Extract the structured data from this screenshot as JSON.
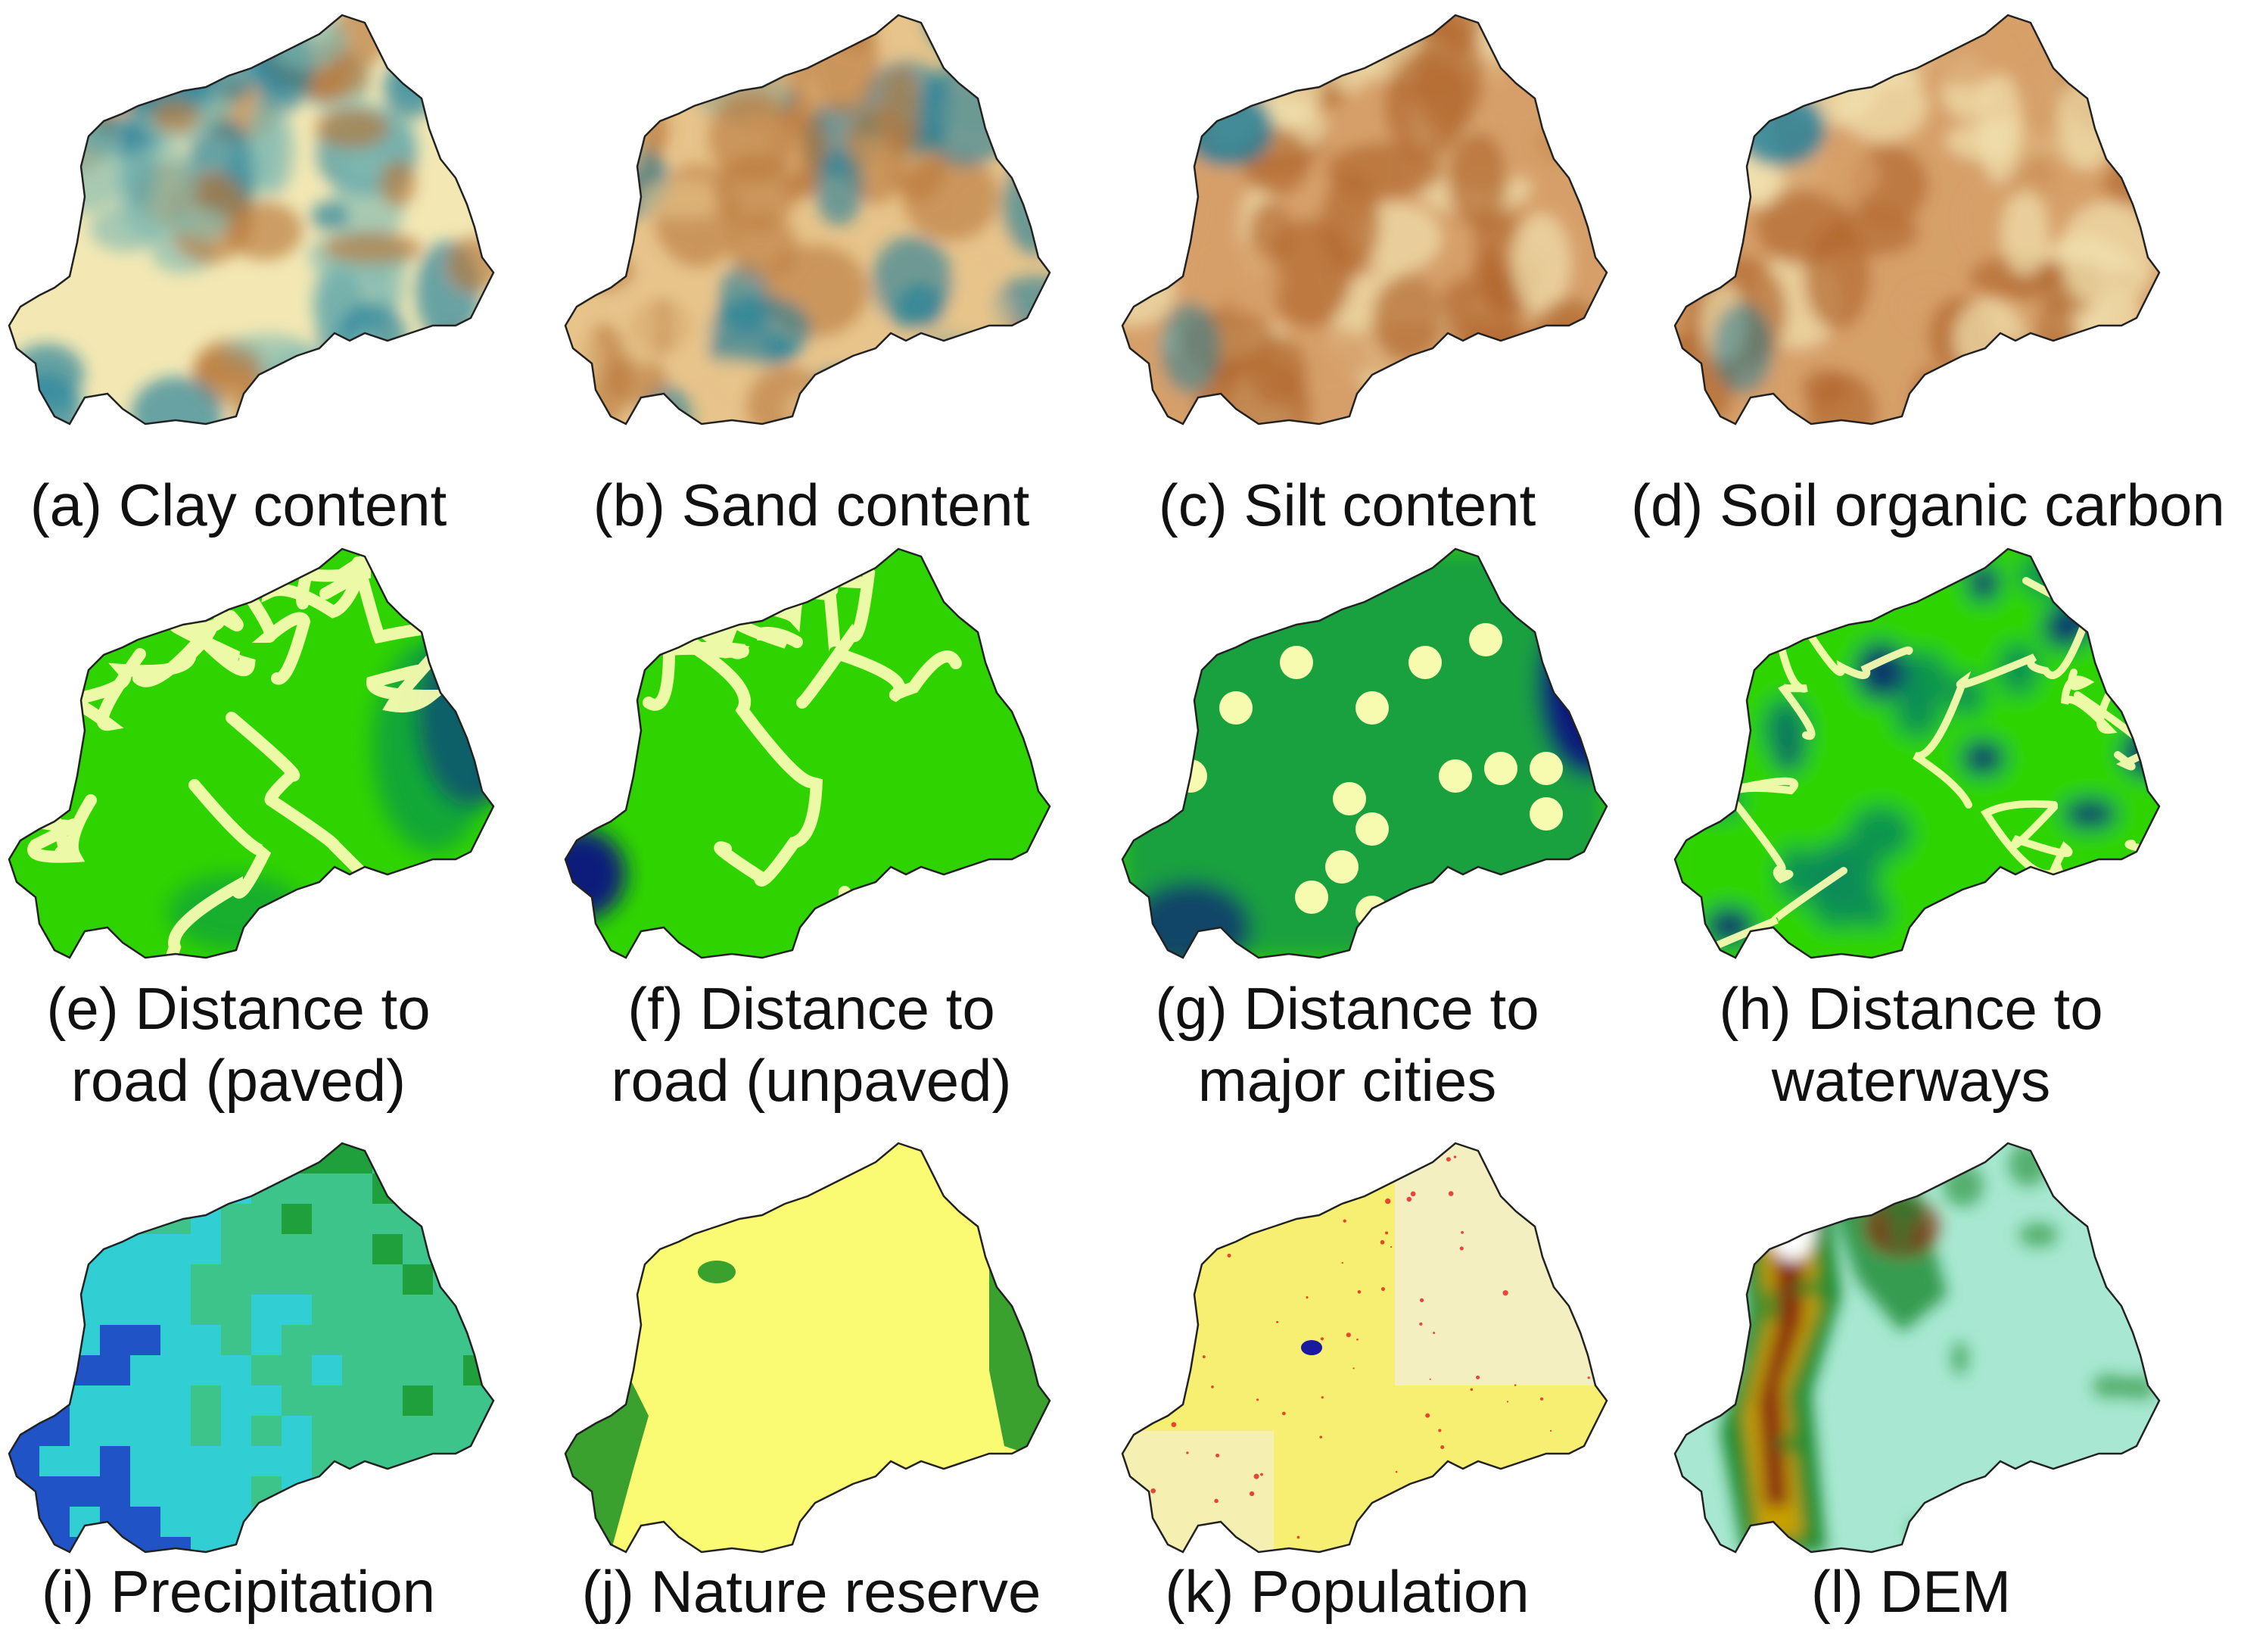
{
  "panels": [
    {
      "id": "a",
      "line1": "(a) Clay content",
      "line2": "",
      "legend": [
        "#b7773a",
        "#f3e8b4",
        "#7fb9b0",
        "#1b7d9a"
      ],
      "style": "soil-clay"
    },
    {
      "id": "b",
      "line1": "(b) Sand content",
      "line2": "",
      "legend": [
        "#b7773a",
        "#e7c48b",
        "#f3e8b4",
        "#1b7d9a"
      ],
      "style": "soil-sand"
    },
    {
      "id": "c",
      "line1": "(c) Silt content",
      "line2": "",
      "legend": [
        "#b26a31",
        "#d6a06a",
        "#f1e3b0",
        "#1b7d9a"
      ],
      "style": "soil-silt"
    },
    {
      "id": "d",
      "line1": "(d) Soil organic carbon",
      "line2": "",
      "legend": [
        "#b26a31",
        "#d6a06a",
        "#f1e3b0",
        "#1b7d9a"
      ],
      "style": "soil-soc"
    },
    {
      "id": "e",
      "line1": "(e) Distance to",
      "line2": "road (paved)",
      "legend": [
        "#f7fbb0",
        "#2fd400",
        "#0a8a5a",
        "#0a1f7a"
      ],
      "style": "dist-paved"
    },
    {
      "id": "f",
      "line1": "(f) Distance to",
      "line2": "road (unpaved)",
      "legend": [
        "#f7fbb0",
        "#2fd400",
        "#0a8a5a",
        "#0a1f7a"
      ],
      "style": "dist-unpaved"
    },
    {
      "id": "g",
      "line1": "(g) Distance to",
      "line2": "major cities",
      "legend": [
        "#f7fbb0",
        "#2fd400",
        "#0a8a5a",
        "#0a1f7a"
      ],
      "style": "dist-cities"
    },
    {
      "id": "h",
      "line1": "(h) Distance to",
      "line2": "waterways",
      "legend": [
        "#f7fbb0",
        "#2fd400",
        "#0a8a5a",
        "#0a1f7a"
      ],
      "style": "dist-water"
    },
    {
      "id": "i",
      "line1": "(i) Precipitation",
      "line2": "",
      "legend": [
        "#1a9a2e",
        "#3cc48a",
        "#2fd0e0",
        "#1a3fd0"
      ],
      "style": "precip"
    },
    {
      "id": "j",
      "line1": "(j) Nature reserve",
      "line2": "",
      "legend": [
        "#fbfb73",
        "#3aa02e"
      ],
      "style": "reserve"
    },
    {
      "id": "k",
      "line1": "(k) Population",
      "line2": "",
      "legend": [
        "#f4efc0",
        "#f7ef72",
        "#e41a1c",
        "#1a1aa0"
      ],
      "style": "population"
    },
    {
      "id": "l",
      "line1": "(l) DEM",
      "line2": "",
      "legend": [
        "#a8e8d2",
        "#1a8a2e",
        "#c8a000",
        "#8a2a10",
        "#ffffff"
      ],
      "style": "dem"
    }
  ]
}
